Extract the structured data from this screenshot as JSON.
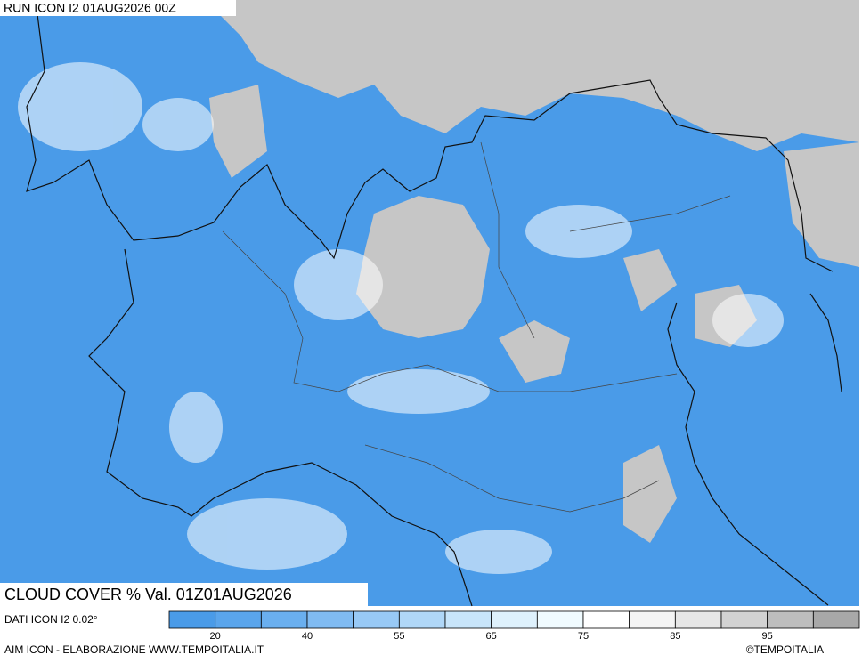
{
  "header": {
    "run": "RUN ICON I2 01AUG2026 00Z"
  },
  "caption": {
    "title": "CLOUD COVER % Val. 01Z01AUG2026",
    "data_source": "DATI ICON I2 0.02°"
  },
  "legend": {
    "colors": [
      "#4a9be8",
      "#5aa5ec",
      "#6aafef",
      "#80bbf2",
      "#98c9f5",
      "#b0d7f7",
      "#c8e5fa",
      "#def1fc",
      "#f0fbff",
      "#ffffff",
      "#f4f4f4",
      "#e6e6e6",
      "#d2d2d2",
      "#bdbdbd",
      "#a8a8a8"
    ],
    "labels": [
      20,
      40,
      55,
      65,
      75,
      85,
      95
    ]
  },
  "footer": {
    "credit": "AIM ICON - ELABORAZIONE WWW.TEMPOITALIA.IT",
    "copyright": "©TEMPOITALIA"
  }
}
